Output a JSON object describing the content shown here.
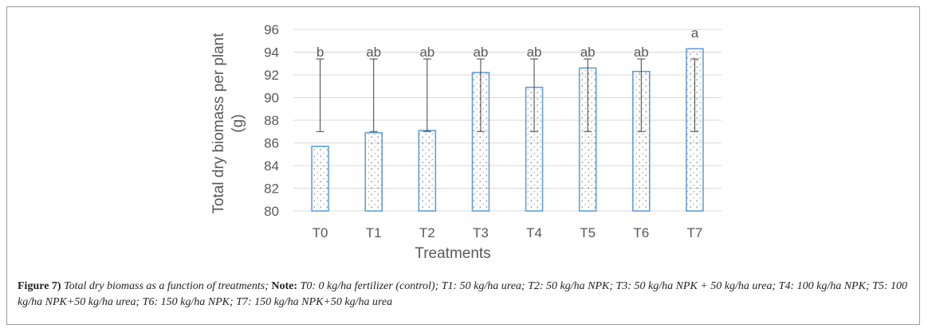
{
  "chart_data": {
    "type": "bar",
    "xlabel": "Treatments",
    "ylabel_line1": "Total dry biomass per plant",
    "ylabel_line2": "(g)",
    "ylim": [
      80,
      96
    ],
    "yticks": [
      80,
      82,
      84,
      86,
      88,
      90,
      92,
      94,
      96
    ],
    "categories": [
      "T0",
      "T1",
      "T2",
      "T3",
      "T4",
      "T5",
      "T6",
      "T7"
    ],
    "values": [
      85.7,
      86.9,
      87.1,
      92.2,
      90.9,
      92.6,
      92.3,
      94.3
    ],
    "error_low": [
      87.0,
      87.0,
      87.0,
      87.0,
      87.0,
      87.0,
      87.0,
      87.0
    ],
    "error_high": [
      93.4,
      93.4,
      93.4,
      93.4,
      93.4,
      93.4,
      93.4,
      93.4
    ],
    "labels": [
      "b",
      "ab",
      "ab",
      "ab",
      "ab",
      "ab",
      "ab",
      "a"
    ],
    "bar_color": "#5b9bd5",
    "pattern_color": "#404040"
  },
  "caption": {
    "figure": "Figure 7)",
    "title": " Total dry biomass as a function of treatments; ",
    "note_label": "Note:",
    "note_text": " T0: 0 kg/ha fertilizer (control); T1: 50 kg/ha urea; T2: 50 kg/ha NPK; T3: 50 kg/ha NPK + 50 kg/ha urea; T4: 100 kg/ha NPK; T5: 100 kg/ha NPK+50 kg/ha urea; T6: 150 kg/ha NPK; T7: 150 kg/ha NPK+50 kg/ha urea"
  }
}
